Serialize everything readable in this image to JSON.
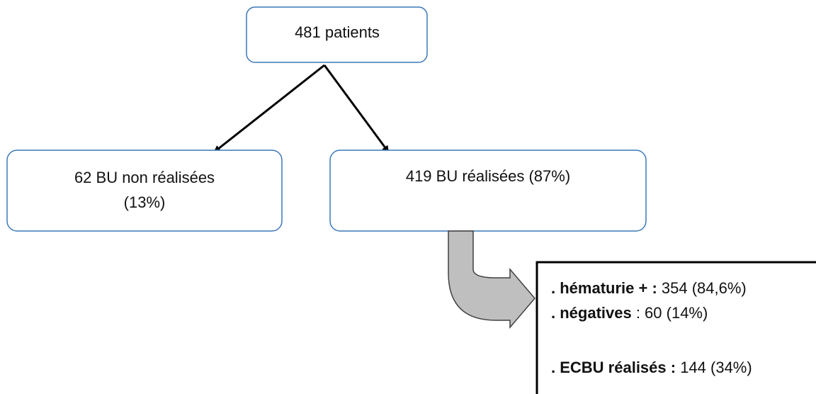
{
  "nodes": [
    {
      "lines": [
        "481 patients"
      ]
    },
    {
      "lines": [
        "62 BU non réalisées",
        "(13%)"
      ]
    },
    {
      "lines": [
        "419 BU réalisées (87%)"
      ]
    }
  ],
  "results": [
    {
      "label": ". hématurie + :",
      "value": " 354 (84,6%)"
    },
    {
      "label": ". négatives",
      "value": " : 60 (14%)"
    },
    {
      "label": ". ECBU réalisés :",
      "value": " 144 (34%)"
    }
  ]
}
